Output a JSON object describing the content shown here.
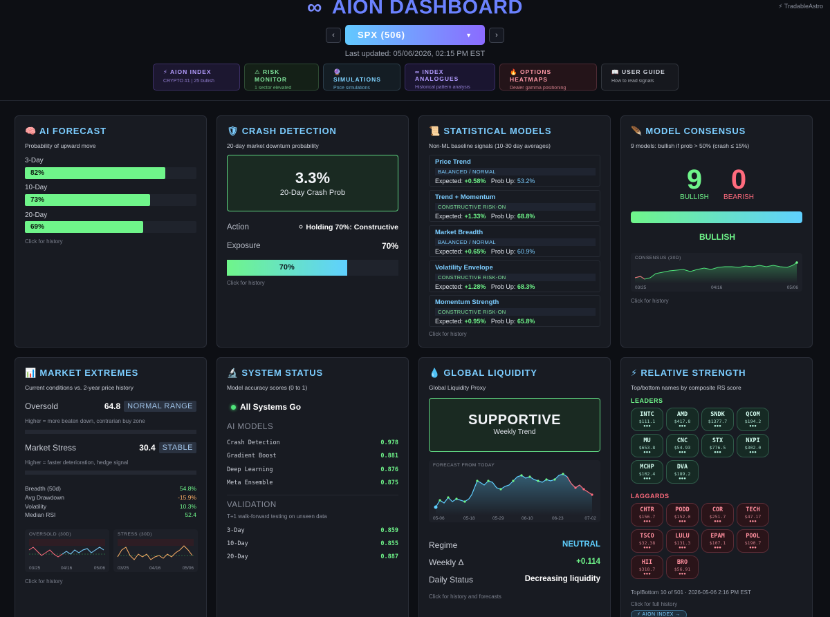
{
  "header": {
    "title": "AION DASHBOARD",
    "logo_glyph": "∞",
    "corner_label": "⚡ TradableAstro",
    "ticker": "SPX (506)",
    "prev": "‹",
    "next": "›",
    "caret": "▼",
    "last_updated": "Last updated: 05/06/2026, 02:15 PM EST"
  },
  "nav_tabs": [
    {
      "label": "⚡ AION INDEX",
      "sub": "CRYPTO #1 | 25 bullish"
    },
    {
      "label": "⚠ RISK MONITOR",
      "sub": "1 sector elevated"
    },
    {
      "label": "🔮 SIMULATIONS",
      "sub": "Price simulations"
    },
    {
      "label": "∞ INDEX ANALOGUES",
      "sub": "Historical pattern analysis"
    },
    {
      "label": "🔥 OPTIONS HEATMAPS",
      "sub": "Dealer gamma positioning"
    },
    {
      "label": "📖 USER GUIDE",
      "sub": "How to read signals"
    }
  ],
  "ai_forecast": {
    "title": "🧠 AI FORECAST",
    "subtitle": "Probability of upward move",
    "rows": [
      {
        "label": "3-Day",
        "value": "82%",
        "pct": 82
      },
      {
        "label": "10-Day",
        "value": "73%",
        "pct": 73
      },
      {
        "label": "20-Day",
        "value": "69%",
        "pct": 69
      }
    ],
    "hint": "Click for history"
  },
  "crash": {
    "title": "🛡 CRASH DETECTION",
    "subtitle": "20-day market downturn probability",
    "big": "3.3%",
    "big_label": "20-Day Crash Prob",
    "action_label": "Action",
    "action_value": "⚪ Holding 70%: Constructive",
    "exposure_label": "Exposure",
    "exposure_value": "70%",
    "bar_label": "70%",
    "bar_pct": 70,
    "hint": "Click for history"
  },
  "stat_models": {
    "title": "📜 STATISTICAL MODELS",
    "subtitle": "Non-ML baseline signals (10-30 day averages)",
    "expected_label": "Expected:",
    "prob_label": "Prob Up:",
    "models": [
      {
        "name": "Price Trend",
        "tag": "BALANCED / NORMAL",
        "expected": "+0.58%",
        "prob": "53.2%"
      },
      {
        "name": "Trend + Momentum",
        "tag": "CONSTRUCTIVE RISK-ON",
        "expected": "+1.33%",
        "prob": "68.8%"
      },
      {
        "name": "Market Breadth",
        "tag": "BALANCED / NORMAL",
        "expected": "+0.65%",
        "prob": "60.9%"
      },
      {
        "name": "Volatility Envelope",
        "tag": "CONSTRUCTIVE RISK-ON",
        "expected": "+1.28%",
        "prob": "68.3%"
      },
      {
        "name": "Momentum Strength",
        "tag": "CONSTRUCTIVE RISK-ON",
        "expected": "+0.95%",
        "prob": "65.8%"
      }
    ],
    "hint": "Click for history"
  },
  "consensus": {
    "title": "🪶 MODEL CONSENSUS",
    "subtitle": "9 models: bullish if prob > 50% (crash ≤ 15%)",
    "bullish": "9",
    "bearish": "0",
    "bullish_label": "BULLISH",
    "bearish_label": "BEARISH",
    "verdict": "BULLISH",
    "chart_title": "CONSENSUS (30D)",
    "axis": [
      "03/25",
      "04/16",
      "05/06"
    ],
    "hint": "Click for history"
  },
  "extremes": {
    "title": "📊 MARKET EXTREMES",
    "subtitle": "Current conditions vs. 2-year price history",
    "oversold_label": "Oversold",
    "oversold_value": "64.8",
    "oversold_badge": "NORMAL RANGE",
    "oversold_note": "Higher = more beaten down, contrarian buy zone",
    "stress_label": "Market Stress",
    "stress_value": "30.4",
    "stress_badge": "STABLE",
    "stress_note": "Higher = faster deterioration, hedge signal",
    "stats": [
      {
        "label": "Breadth (50d)",
        "value": "54.8%",
        "color": "#6ff58a"
      },
      {
        "label": "Avg Drawdown",
        "value": "-15.9%",
        "color": "#ffb067"
      },
      {
        "label": "Volatility",
        "value": "10.3%",
        "color": "#6ff58a"
      },
      {
        "label": "Median RSI",
        "value": "52.4",
        "color": "#6ff58a"
      }
    ],
    "chart1_title": "OVERSOLD (30D)",
    "chart2_title": "STRESS (30D)",
    "axis": [
      "03/25",
      "04/16",
      "05/06"
    ],
    "hint": "Click for history"
  },
  "system": {
    "title": "🔬 SYSTEM STATUS",
    "subtitle": "Model accuracy scores (0 to 1)",
    "status": "All Systems Go",
    "models_head": "AI MODELS",
    "models": [
      {
        "label": "Crash Detection",
        "value": "0.978"
      },
      {
        "label": "Gradient Boost",
        "value": "0.881"
      },
      {
        "label": "Deep Learning",
        "value": "0.876"
      },
      {
        "label": "Meta Ensemble",
        "value": "0.875"
      }
    ],
    "validation_head": "VALIDATION",
    "validation_note": "T+1 walk-forward testing on unseen data",
    "validation": [
      {
        "label": "3-Day",
        "value": "0.859"
      },
      {
        "label": "10-Day",
        "value": "0.855"
      },
      {
        "label": "20-Day",
        "value": "0.887"
      }
    ]
  },
  "liquidity": {
    "title": "💧 GLOBAL LIQUIDITY",
    "subtitle": "Global Liquidity Proxy",
    "big": "SUPPORTIVE",
    "big_label": "Weekly Trend",
    "chart_title": "FORECAST FROM TODAY",
    "axis": [
      "05-06",
      "05-18",
      "05-29",
      "06-10",
      "06-23",
      "07-02"
    ],
    "regime_label": "Regime",
    "regime_value": "NEUTRAL",
    "weekly_label": "Weekly Δ",
    "weekly_value": "+0.114",
    "daily_label": "Daily Status",
    "daily_value": "Decreasing liquidity",
    "hint": "Click for history and forecasts"
  },
  "strength": {
    "title": "⚡ RELATIVE STRENGTH",
    "subtitle": "Top/bottom names by composite RS score",
    "leaders_head": "LEADERS",
    "leaders": [
      {
        "t": "INTC",
        "p": "$111.1"
      },
      {
        "t": "AMD",
        "p": "$417.8"
      },
      {
        "t": "SNDK",
        "p": "$1377.7"
      },
      {
        "t": "QCOM",
        "p": "$194.2"
      },
      {
        "t": "MU",
        "p": "$653.8"
      },
      {
        "t": "CNC",
        "p": "$54.93"
      },
      {
        "t": "STX",
        "p": "$776.5"
      },
      {
        "t": "NXPI",
        "p": "$302.0"
      },
      {
        "t": "MCHP",
        "p": "$102.4"
      },
      {
        "t": "DVA",
        "p": "$189.2"
      }
    ],
    "laggards_head": "LAGGARDS",
    "laggards": [
      {
        "t": "CHTR",
        "p": "$156.7"
      },
      {
        "t": "PODD",
        "p": "$152.0"
      },
      {
        "t": "COR",
        "p": "$251.7"
      },
      {
        "t": "TECH",
        "p": "$47.17"
      },
      {
        "t": "TSCO",
        "p": "$32.38"
      },
      {
        "t": "LULU",
        "p": "$131.3"
      },
      {
        "t": "EPAM",
        "p": "$107.1"
      },
      {
        "t": "POOL",
        "p": "$190.7"
      },
      {
        "t": "HII",
        "p": "$318.7"
      },
      {
        "t": "BRO",
        "p": "$56.91"
      }
    ],
    "dots": "●●●",
    "footer": "Top/Bottom 10 of 501 · 2026-05-06 2:16 PM EST",
    "hint": "Click for full history",
    "aion_btn": "⚡ AION INDEX →"
  }
}
